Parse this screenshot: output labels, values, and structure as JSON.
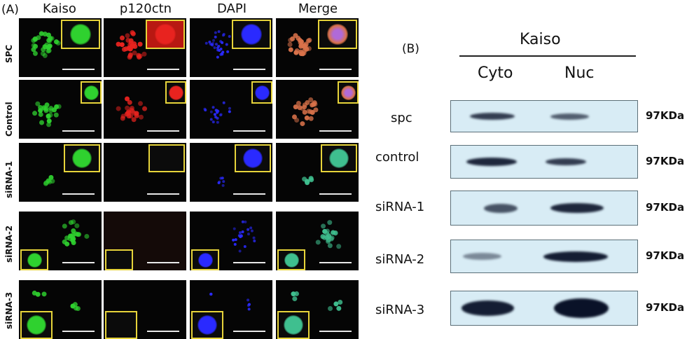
{
  "panel_a": {
    "label": "(A)",
    "columns": [
      "Kaiso",
      "p120ctn",
      "DAPI",
      "Merge"
    ],
    "rows": [
      "SPC",
      "Control",
      "siRNA-1",
      "siRNA-2",
      "siRNA-3"
    ]
  },
  "panel_b": {
    "label": "(B)",
    "protein": "Kaiso",
    "fractions": [
      "Cyto",
      "Nuc"
    ],
    "lanes": [
      {
        "label": "spc",
        "mw": "97KDa"
      },
      {
        "label": "control",
        "mw": "97KDa"
      },
      {
        "label": "siRNA-1",
        "mw": "97KDa"
      },
      {
        "label": "siRNA-2",
        "mw": "97KDa"
      },
      {
        "label": "siRNA-3",
        "mw": "97KDa"
      }
    ]
  },
  "colors": {
    "kaiso": "#2fd12f",
    "p120ctn": "#e8231f",
    "dapi": "#2a2aff",
    "inset_border": "#e7d43a",
    "blot_bg": "#d8ecf5"
  }
}
